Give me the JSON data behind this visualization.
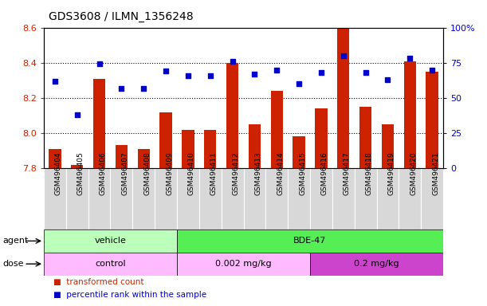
{
  "title": "GDS3608 / ILMN_1356248",
  "samples": [
    "GSM496404",
    "GSM496405",
    "GSM496406",
    "GSM496407",
    "GSM496408",
    "GSM496409",
    "GSM496410",
    "GSM496411",
    "GSM496412",
    "GSM496413",
    "GSM496414",
    "GSM496415",
    "GSM496416",
    "GSM496417",
    "GSM496418",
    "GSM496419",
    "GSM496420",
    "GSM496421"
  ],
  "transformed_count": [
    7.91,
    7.82,
    8.31,
    7.93,
    7.91,
    8.12,
    8.02,
    8.02,
    8.4,
    8.05,
    8.24,
    7.98,
    8.14,
    8.6,
    8.15,
    8.05,
    8.41,
    8.35
  ],
  "percentile_rank": [
    62,
    38,
    74,
    57,
    57,
    69,
    66,
    66,
    76,
    67,
    70,
    60,
    68,
    80,
    68,
    63,
    78,
    70
  ],
  "ylim_left": [
    7.8,
    8.6
  ],
  "ylim_right": [
    0,
    100
  ],
  "yticks_left": [
    7.8,
    8.0,
    8.2,
    8.4,
    8.6
  ],
  "yticks_right": [
    0,
    25,
    50,
    75,
    100
  ],
  "ytick_right_labels": [
    "0",
    "25",
    "50",
    "75",
    "100%"
  ],
  "bar_color": "#cc2200",
  "dot_color": "#0000cc",
  "bar_bottom": 7.8,
  "agent_groups": [
    {
      "label": "vehicle",
      "start": 0,
      "end": 6,
      "color": "#bbffbb"
    },
    {
      "label": "BDE-47",
      "start": 6,
      "end": 18,
      "color": "#55ee55"
    }
  ],
  "dose_groups": [
    {
      "label": "control",
      "start": 0,
      "end": 6,
      "color": "#ffbbff"
    },
    {
      "label": "0.002 mg/kg",
      "start": 6,
      "end": 12,
      "color": "#ffbbff"
    },
    {
      "label": "0.2 mg/kg",
      "start": 12,
      "end": 18,
      "color": "#cc44cc"
    }
  ],
  "legend_items": [
    {
      "color": "#cc2200",
      "label": "transformed count"
    },
    {
      "color": "#0000cc",
      "label": "percentile rank within the sample"
    }
  ],
  "grid_yticks": [
    8.0,
    8.2,
    8.4
  ],
  "sample_bg_color": "#d8d8d8",
  "bar_width": 0.55,
  "title_fontsize": 10,
  "tick_label_fontsize": 6.5
}
